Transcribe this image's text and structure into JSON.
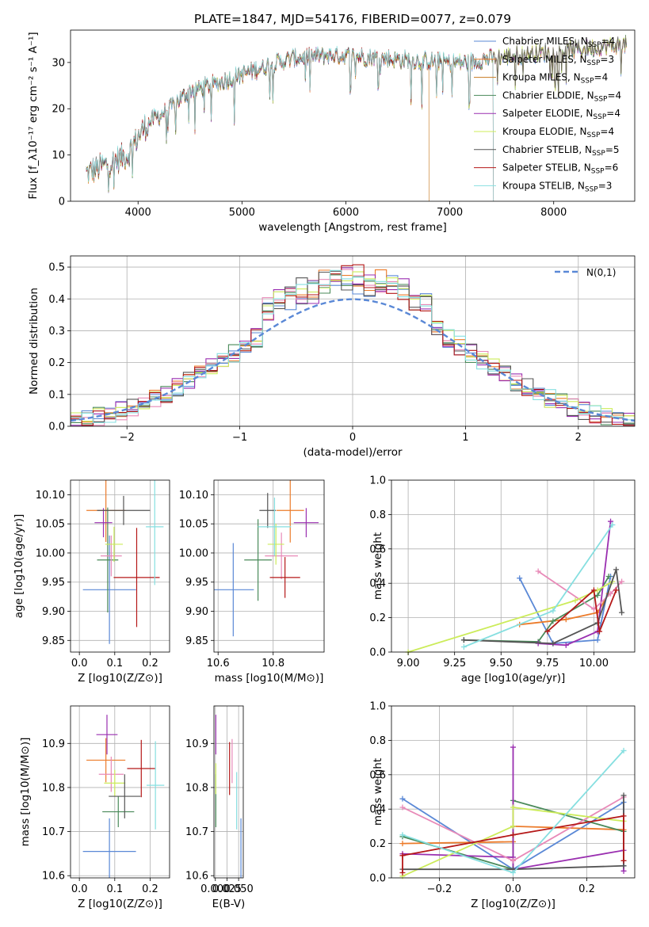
{
  "palette": [
    "#5a88d6",
    "#ec7b2a",
    "#4a8a5a",
    "#9a2fb0",
    "#e88ab8",
    "#ccec5a",
    "#555555",
    "#b51818",
    "#86dfe0"
  ],
  "chart_data": [
    {
      "id": "spectrum",
      "type": "line",
      "title": "PLATE=1847, MJD=54176, FIBERID=0077, z=0.079",
      "xlabel": "wavelength [Angstrom, rest frame]",
      "ylabel": "Flux [f_λ10⁻¹⁷ erg cm⁻² s⁻¹ A⁻¹]",
      "xlim": [
        3350,
        8780
      ],
      "ylim": [
        0,
        37
      ],
      "xticks": [
        4000,
        5000,
        6000,
        7000,
        8000
      ],
      "yticks": [
        0,
        10,
        20,
        30
      ],
      "grid": false,
      "legend_placement": "upper right",
      "series": [
        {
          "name": "Chabrier MILES, N_SSP=4",
          "color": "#5a88d6"
        },
        {
          "name": "Salpeter MILES, N_SSP=3",
          "color": "#ec7b2a"
        },
        {
          "name": "Kroupa MILES, N_SSP=4",
          "color": "#c87a20"
        },
        {
          "name": "Chabrier ELODIE, N_SSP=4",
          "color": "#4a8a5a"
        },
        {
          "name": "Salpeter ELODIE, N_SSP=4",
          "color": "#9a2fb0"
        },
        {
          "name": "Kroupa ELODIE, N_SSP=4",
          "color": "#ccec5a"
        },
        {
          "name": "Chabrier STELIB, N_SSP=5",
          "color": "#555555"
        },
        {
          "name": "Salpeter STELIB, N_SSP=6",
          "color": "#b51818"
        },
        {
          "name": "Kroupa STELIB, N_SSP=3",
          "color": "#86dfe0"
        }
      ],
      "continuum": {
        "x": [
          3500,
          3700,
          3900,
          4000,
          4100,
          4300,
          4500,
          4700,
          5000,
          5200,
          5500,
          5800,
          6000,
          6300,
          6600,
          7000,
          7200,
          7400,
          7800,
          8300,
          8700
        ],
        "y": [
          6,
          8,
          10,
          14,
          17,
          20,
          24,
          25,
          27.5,
          29,
          31,
          31.5,
          31.5,
          31,
          30.5,
          30,
          30,
          31,
          32,
          33,
          34
        ]
      },
      "model_end_x": {
        "Kroupa MILES, N_SSP=4": 6800,
        "Salpeter STELIB, N_SSP=6": 7420,
        "Kroupa STELIB, N_SSP=3": 7420
      }
    },
    {
      "id": "residuals",
      "type": "histogram",
      "xlabel": "(data-model)/error",
      "ylabel": "Normed distribution",
      "xlim": [
        -2.5,
        2.5
      ],
      "ylim": [
        0,
        0.535
      ],
      "xticks": [
        -2,
        -1,
        0,
        1,
        2
      ],
      "yticks": [
        0.0,
        0.1,
        0.2,
        0.3,
        0.4,
        0.5
      ],
      "grid": true,
      "legend_placement": "upper right",
      "reference": {
        "name": "N(0,1)",
        "mu": 0,
        "sigma": 1,
        "color": "#5a88d6"
      },
      "bin_width": 0.1,
      "bin_start": -2.5
    },
    {
      "id": "age-vs-Z",
      "type": "errorbar",
      "xlabel": "Z [log10(Z/Z⊙)]",
      "ylabel": "age [log10(age/yr)]",
      "xlim": [
        -0.025,
        0.255
      ],
      "ylim": [
        9.83,
        10.125
      ],
      "xticks": [
        0.0,
        0.1,
        0.2
      ],
      "yticks": [
        9.85,
        9.9,
        9.95,
        10.0,
        10.05,
        10.1
      ],
      "grid": true,
      "points": [
        {
          "x": 0.085,
          "xerr": 0.075,
          "y": 9.937,
          "yerr": 0.093,
          "color": "#5a88d6"
        },
        {
          "x": 0.075,
          "xerr": 0.055,
          "y": 10.073,
          "yerr": 0.054,
          "color": "#ec7b2a"
        },
        {
          "x": 0.08,
          "xerr": 0.03,
          "y": 9.988,
          "yerr": 0.09,
          "color": "#4a8a5a"
        },
        {
          "x": 0.068,
          "xerr": 0.025,
          "y": 10.052,
          "yerr": 0.025,
          "color": "#9a2fb0"
        },
        {
          "x": 0.09,
          "xerr": 0.03,
          "y": 9.995,
          "yerr": 0.035,
          "color": "#e88ab8"
        },
        {
          "x": 0.098,
          "xerr": 0.025,
          "y": 10.015,
          "yerr": 0.03,
          "color": "#ccec5a"
        },
        {
          "x": 0.125,
          "xerr": 0.075,
          "y": 10.073,
          "yerr": 0.025,
          "color": "#555555"
        },
        {
          "x": 0.162,
          "xerr": 0.065,
          "y": 9.958,
          "yerr": 0.085,
          "color": "#b51818"
        },
        {
          "x": 0.213,
          "xerr": 0.025,
          "y": 10.045,
          "yerr": 0.1,
          "color": "#86dfe0"
        }
      ]
    },
    {
      "id": "age-vs-mass",
      "type": "errorbar",
      "xlabel": "mass [log10(M/M⊙)]",
      "ylabel": "",
      "xlim": [
        10.585,
        10.985
      ],
      "ylim": [
        9.83,
        10.125
      ],
      "xticks": [
        10.6,
        10.8
      ],
      "yticks": [
        9.85,
        9.9,
        9.95,
        10.0,
        10.05,
        10.1
      ],
      "grid": true,
      "points": [
        {
          "x": 10.655,
          "xerr": 0.075,
          "y": 9.937,
          "yerr": 0.08,
          "color": "#5a88d6"
        },
        {
          "x": 10.862,
          "xerr": 0.05,
          "y": 10.073,
          "yerr": 0.055,
          "color": "#ec7b2a"
        },
        {
          "x": 10.745,
          "xerr": 0.05,
          "y": 9.988,
          "yerr": 0.07,
          "color": "#4a8a5a"
        },
        {
          "x": 10.92,
          "xerr": 0.045,
          "y": 10.052,
          "yerr": 0.025,
          "color": "#9a2fb0"
        },
        {
          "x": 10.83,
          "xerr": 0.06,
          "y": 9.995,
          "yerr": 0.04,
          "color": "#e88ab8"
        },
        {
          "x": 10.81,
          "xerr": 0.03,
          "y": 10.015,
          "yerr": 0.035,
          "color": "#ccec5a"
        },
        {
          "x": 10.78,
          "xerr": 0.03,
          "y": 10.073,
          "yerr": 0.03,
          "color": "#555555"
        },
        {
          "x": 10.843,
          "xerr": 0.055,
          "y": 9.958,
          "yerr": 0.035,
          "color": "#b51818"
        },
        {
          "x": 10.805,
          "xerr": 0.06,
          "y": 10.045,
          "yerr": 0.05,
          "color": "#86dfe0"
        }
      ]
    },
    {
      "id": "weight-vs-age",
      "type": "line",
      "xlabel": "age [log10(age/yr)]",
      "ylabel": "mass weight",
      "xlim": [
        8.91,
        10.22
      ],
      "ylim": [
        0,
        1
      ],
      "xticks": [
        9.0,
        9.25,
        9.5,
        9.75,
        10.0
      ],
      "yticks": [
        0.0,
        0.2,
        0.4,
        0.6,
        0.8,
        1.0
      ],
      "grid": true,
      "series": [
        {
          "color": "#5a88d6",
          "points": [
            [
              9.6,
              0.43
            ],
            [
              9.78,
              0.05
            ],
            [
              10.02,
              0.07
            ],
            [
              10.09,
              0.44
            ]
          ]
        },
        {
          "color": "#ec7b2a",
          "points": [
            [
              9.6,
              0.16
            ],
            [
              9.85,
              0.19
            ],
            [
              10.02,
              0.23
            ],
            [
              10.08,
              0.34
            ]
          ]
        },
        {
          "color": "#4a8a5a",
          "points": [
            [
              9.3,
              0.07
            ],
            [
              9.7,
              0.06
            ],
            [
              9.78,
              0.18
            ],
            [
              10.02,
              0.33
            ],
            [
              10.08,
              0.44
            ]
          ]
        },
        {
          "color": "#9a2fb0",
          "points": [
            [
              9.7,
              0.05
            ],
            [
              9.85,
              0.04
            ],
            [
              10.02,
              0.12
            ],
            [
              10.09,
              0.76
            ]
          ]
        },
        {
          "color": "#e88ab8",
          "points": [
            [
              9.7,
              0.47
            ],
            [
              10.0,
              0.25
            ],
            [
              10.09,
              0.34
            ],
            [
              10.15,
              0.41
            ]
          ]
        },
        {
          "color": "#ccec5a",
          "points": [
            [
              9.0,
              0.0
            ],
            [
              9.9,
              0.3
            ],
            [
              10.02,
              0.36
            ],
            [
              10.1,
              0.41
            ]
          ]
        },
        {
          "color": "#555555",
          "points": [
            [
              9.3,
              0.07
            ],
            [
              9.78,
              0.05
            ],
            [
              10.02,
              0.17
            ],
            [
              10.12,
              0.48
            ],
            [
              10.15,
              0.23
            ]
          ]
        },
        {
          "color": "#b51818",
          "points": [
            [
              9.75,
              0.12
            ],
            [
              10.0,
              0.36
            ],
            [
              10.03,
              0.12
            ],
            [
              10.12,
              0.36
            ]
          ]
        },
        {
          "color": "#86dfe0",
          "points": [
            [
              9.3,
              0.03
            ],
            [
              9.78,
              0.24
            ],
            [
              10.1,
              0.74
            ]
          ]
        }
      ]
    },
    {
      "id": "mass-vs-Z",
      "type": "errorbar",
      "xlabel": "Z [log10(Z/Z⊙)]",
      "ylabel": "mass [log10(M/M⊙)]",
      "xlim": [
        -0.025,
        0.255
      ],
      "ylim": [
        10.595,
        10.985
      ],
      "xticks": [
        0.0,
        0.1,
        0.2
      ],
      "yticks": [
        10.6,
        10.7,
        10.8,
        10.9
      ],
      "grid": true,
      "points": [
        {
          "x": 0.085,
          "xerr": 0.075,
          "y": 10.655,
          "yerr": 0.075,
          "color": "#5a88d6"
        },
        {
          "x": 0.075,
          "xerr": 0.055,
          "y": 10.862,
          "yerr": 0.05,
          "color": "#ec7b2a"
        },
        {
          "x": 0.11,
          "xerr": 0.045,
          "y": 10.745,
          "yerr": 0.035,
          "color": "#4a8a5a"
        },
        {
          "x": 0.078,
          "xerr": 0.03,
          "y": 10.92,
          "yerr": 0.045,
          "color": "#9a2fb0"
        },
        {
          "x": 0.09,
          "xerr": 0.035,
          "y": 10.83,
          "yerr": 0.04,
          "color": "#e88ab8"
        },
        {
          "x": 0.1,
          "xerr": 0.03,
          "y": 10.81,
          "yerr": 0.03,
          "color": "#ccec5a"
        },
        {
          "x": 0.128,
          "xerr": 0.045,
          "y": 10.78,
          "yerr": 0.05,
          "color": "#555555"
        },
        {
          "x": 0.175,
          "xerr": 0.04,
          "y": 10.843,
          "yerr": 0.065,
          "color": "#b51818"
        },
        {
          "x": 0.215,
          "xerr": 0.025,
          "y": 10.805,
          "yerr": 0.1,
          "color": "#86dfe0"
        }
      ]
    },
    {
      "id": "mass-vs-ebv",
      "type": "errorbar",
      "xlabel": "E(B-V)",
      "ylabel": "",
      "xlim": [
        -0.003,
        0.06
      ],
      "ylim": [
        10.595,
        10.985
      ],
      "xticks": [
        0.0,
        0.025,
        0.05
      ],
      "yticks": [
        10.6,
        10.7,
        10.8,
        10.9
      ],
      "grid": true,
      "points": [
        {
          "x": 0.055,
          "y": 10.655,
          "yerr": 0.075,
          "color": "#5a88d6"
        },
        {
          "x": 0.001,
          "y": 10.77,
          "yerr": 0.06,
          "color": "#4a8a5a"
        },
        {
          "x": 0.001,
          "y": 10.92,
          "yerr": 0.045,
          "color": "#9a2fb0"
        },
        {
          "x": 0.036,
          "y": 10.86,
          "yerr": 0.05,
          "color": "#e88ab8"
        },
        {
          "x": 0.001,
          "y": 10.82,
          "yerr": 0.035,
          "color": "#ccec5a"
        },
        {
          "x": 0.0305,
          "y": 10.843,
          "yerr": 0.06,
          "color": "#b51818"
        },
        {
          "x": 0.0458,
          "y": 10.77,
          "yerr": 0.065,
          "color": "#86dfe0"
        }
      ]
    },
    {
      "id": "weight-vs-Z",
      "type": "line",
      "xlabel": "Z [log10(Z/Z⊙)]",
      "ylabel": "mass weight",
      "xlim": [
        -0.33,
        0.33
      ],
      "ylim": [
        0,
        1
      ],
      "xticks": [
        -0.2,
        0.0,
        0.2
      ],
      "yticks": [
        0.0,
        0.2,
        0.4,
        0.6,
        0.8,
        1.0
      ],
      "grid": true,
      "series": [
        {
          "color": "#5a88d6",
          "points": [
            [
              -0.3,
              0.46
            ],
            [
              0.0,
              0.05
            ],
            [
              0.3,
              0.44
            ],
            [
              0.3,
              0.07
            ]
          ]
        },
        {
          "color": "#ec7b2a",
          "points": [
            [
              -0.3,
              0.2
            ],
            [
              0.0,
              0.21
            ],
            [
              0.0,
              0.3
            ],
            [
              0.3,
              0.28
            ]
          ]
        },
        {
          "color": "#4a8a5a",
          "points": [
            [
              -0.3,
              0.24
            ],
            [
              0.0,
              0.05
            ],
            [
              0.0,
              0.45
            ],
            [
              0.3,
              0.27
            ]
          ]
        },
        {
          "color": "#9a2fb0",
          "points": [
            [
              -0.3,
              0.14
            ],
            [
              0.0,
              0.12
            ],
            [
              0.0,
              0.76
            ],
            [
              0.0,
              0.05
            ],
            [
              0.3,
              0.16
            ],
            [
              0.3,
              0.04
            ]
          ]
        },
        {
          "color": "#e88ab8",
          "points": [
            [
              -0.3,
              0.41
            ],
            [
              0.0,
              0.1
            ],
            [
              0.3,
              0.47
            ]
          ]
        },
        {
          "color": "#ccec5a",
          "points": [
            [
              -0.3,
              0.01
            ],
            [
              0.0,
              0.3
            ],
            [
              0.0,
              0.41
            ],
            [
              0.3,
              0.33
            ]
          ]
        },
        {
          "color": "#555555",
          "points": [
            [
              -0.3,
              0.05
            ],
            [
              0.0,
              0.05
            ],
            [
              0.3,
              0.07
            ],
            [
              0.3,
              0.48
            ]
          ]
        },
        {
          "color": "#b51818",
          "points": [
            [
              -0.3,
              0.03
            ],
            [
              -0.3,
              0.13
            ],
            [
              0.0,
              0.25
            ],
            [
              0.3,
              0.36
            ],
            [
              0.3,
              0.1
            ]
          ]
        },
        {
          "color": "#86dfe0",
          "points": [
            [
              -0.3,
              0.25
            ],
            [
              0.0,
              0.03
            ],
            [
              0.3,
              0.74
            ]
          ]
        }
      ]
    }
  ]
}
